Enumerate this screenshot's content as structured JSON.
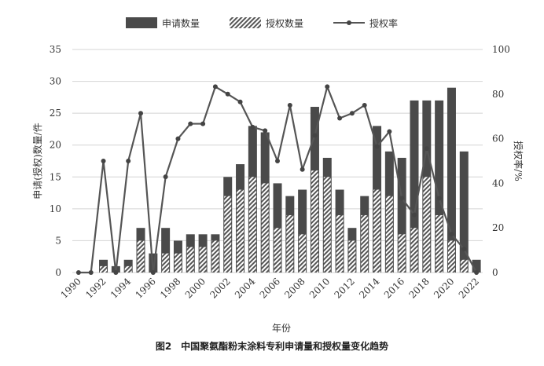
{
  "chart_data": {
    "type": "bar",
    "caption": "图2　中国聚氨酯粉末涂料专利申请量和授权量变化趋势",
    "xlabel": "年份",
    "ylabel": "申请(授权)数量/件",
    "y2label": "授权率/%",
    "ylim": [
      0,
      35
    ],
    "y2lim": [
      0,
      100
    ],
    "yticks": [
      0,
      5,
      10,
      15,
      20,
      25,
      30,
      35
    ],
    "y2ticks": [
      0,
      20,
      40,
      60,
      80,
      100
    ],
    "grid": true,
    "legend_position": "top",
    "categories": [
      "1990",
      "1991",
      "1992",
      "1993",
      "1994",
      "1995",
      "1996",
      "1997",
      "1998",
      "1999",
      "2000",
      "2001",
      "2002",
      "2003",
      "2004",
      "2005",
      "2006",
      "2007",
      "2008",
      "2009",
      "2010",
      "2011",
      "2012",
      "2013",
      "2014",
      "2015",
      "2016",
      "2017",
      "2018",
      "2019",
      "2020",
      "2021",
      "2022"
    ],
    "xtick_labels": [
      "1990",
      "1992",
      "1994",
      "1996",
      "1998",
      "2000",
      "2002",
      "2004",
      "2006",
      "2008",
      "2010",
      "2012",
      "2014",
      "2016",
      "2018",
      "2020",
      "2022"
    ],
    "series": [
      {
        "name": "申请数量",
        "kind": "bar",
        "color": "#4a4a4a",
        "values": [
          0,
          0,
          2,
          1,
          2,
          7,
          3,
          7,
          5,
          6,
          6,
          6,
          15,
          17,
          23,
          22,
          14,
          12,
          13,
          26,
          18,
          13,
          7,
          12,
          23,
          19,
          18,
          27,
          27,
          27,
          29,
          19,
          2
        ]
      },
      {
        "name": "授权数量",
        "kind": "hatched-bar",
        "values": [
          0,
          0,
          1,
          0,
          1,
          5,
          0,
          3,
          3,
          4,
          4,
          5,
          12,
          13,
          15,
          14,
          7,
          9,
          6,
          16,
          15,
          9,
          5,
          9,
          13,
          12,
          6,
          7,
          15,
          9,
          5,
          2,
          0
        ]
      },
      {
        "name": "授权率",
        "kind": "line",
        "axis": "right",
        "color": "#555555",
        "values": [
          0,
          0,
          50,
          0,
          50,
          71.4,
          0,
          42.9,
          60,
          66.7,
          66.7,
          83.3,
          80,
          76.5,
          65.2,
          63.6,
          50,
          75,
          46.2,
          61.5,
          83.3,
          69.2,
          71.4,
          75,
          56.5,
          63.2,
          33.3,
          25.9,
          55.6,
          33.3,
          17.2,
          10.5,
          0
        ]
      }
    ]
  }
}
